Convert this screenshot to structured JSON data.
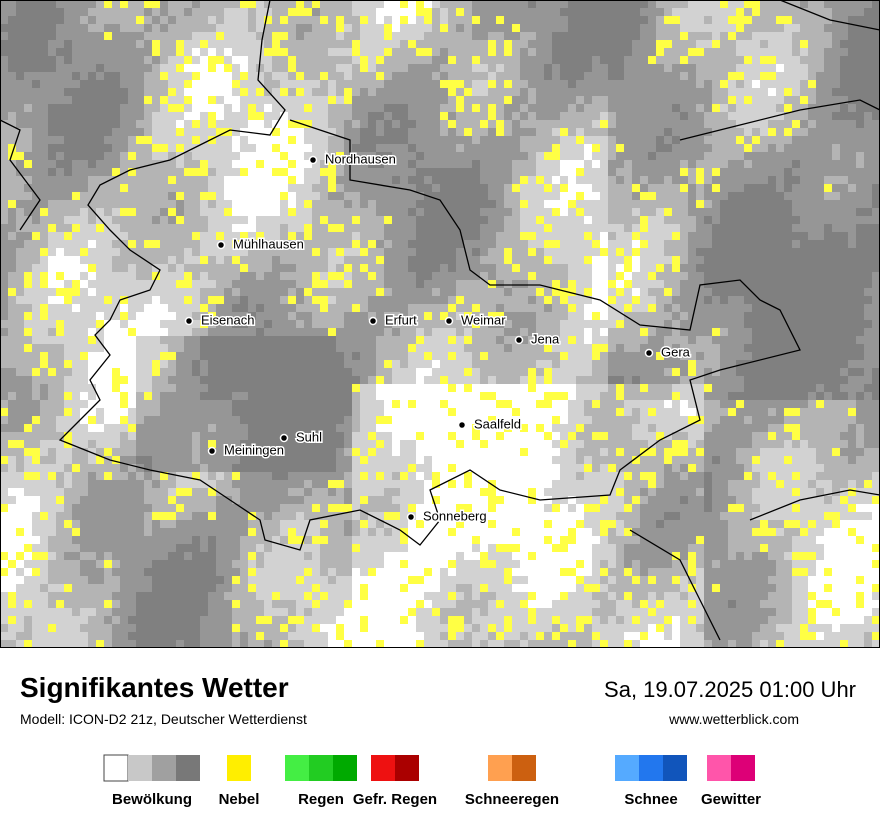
{
  "map": {
    "cities": [
      "Nordhausen",
      "Mühlhausen",
      "Eisenach",
      "Erfurt",
      "Weimar",
      "Jena",
      "Gera",
      "Saalfeld",
      "Suhl",
      "Meiningen",
      "Sonneberg"
    ]
  },
  "footer": {
    "title": "Signifikantes Wetter",
    "model": "Modell: ICON-D2 21z, Deutscher Wetterdienst",
    "datetime": "Sa, 19.07.2025 01:00 Uhr",
    "url": "www.wetterblick.com"
  },
  "legend": {
    "items": [
      {
        "name": "Bewölkung",
        "colors": [
          "#ffffff",
          "#c8c8c8",
          "#a0a0a0",
          "#787878"
        ]
      },
      {
        "name": "Nebel",
        "colors": [
          "#ffee00"
        ]
      },
      {
        "name": "Regen",
        "colors": [
          "#44ee44",
          "#22cc22",
          "#00aa00"
        ]
      },
      {
        "name": "Gefr. Regen",
        "colors": [
          "#ee1111",
          "#aa0000"
        ]
      },
      {
        "name": "Schneeregen",
        "colors": [
          "#ffa050",
          "#cc6010"
        ]
      },
      {
        "name": "Schnee",
        "colors": [
          "#55aaff",
          "#2277ee",
          "#1155bb"
        ]
      },
      {
        "name": "Gewitter",
        "colors": [
          "#ff55aa",
          "#dd0077"
        ]
      }
    ]
  }
}
